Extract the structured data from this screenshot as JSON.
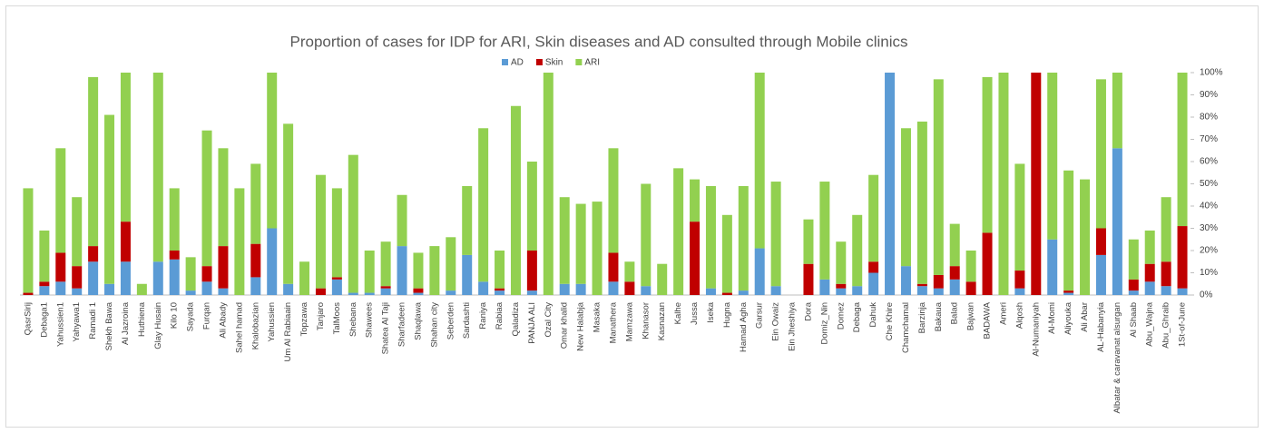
{
  "chart_data": {
    "type": "stacked_bar",
    "title": "Proportion of cases for IDP for ARI, Skin diseases and AD consulted through Mobile clinics",
    "categories": [
      "QasrSirij",
      "Debaga1",
      "Yahussien1",
      "Yahyawa1",
      "Ramadi 1",
      "Shekh Bawa",
      "Al Jazroina",
      "Huthiena",
      "Glay Husain",
      "Kilo 10",
      "Sayada",
      "Furqan",
      "Ali Abady",
      "Sahel hamad",
      "Khalobazian",
      "Yahussien",
      "Um Al Rabiaain",
      "Topzawa",
      "Tanjaro",
      "TalMoos",
      "Shebana",
      "Shawees",
      "Shatea Al Taji",
      "Sharfadeen",
      "Shaqlawa",
      "Shahan city",
      "Seberden",
      "Sardashti",
      "Raniya",
      "Rabiaa",
      "Qaladiza",
      "PANJA ALI",
      "Ozal City",
      "Omar khalid",
      "New Halabja",
      "Masaka",
      "Manathera",
      "Mamzawa",
      "Khanasor",
      "Kasnazan",
      "Kalhe",
      "Jussa",
      "Iseka",
      "Hugna",
      "Hamad Agha",
      "Garsur",
      "Ein Owaiz",
      "Ein Jheshiya",
      "Dora",
      "Domiz_Nin",
      "Domez",
      "Debaga",
      "Dahuk",
      "Che Khire",
      "Chamchamal",
      "Barzinja",
      "Bakaua",
      "Balad",
      "Bajwan",
      "BADAWA",
      "Ameri",
      "Alqosh",
      "Al-Numaniyah",
      "Al-Momi",
      "Aliyouka",
      "Ali Abar",
      "AL-Habanyia",
      "Albatar & caravanat alsurgan",
      "Al Shaab",
      "Abu_Wajna",
      "Abu_Ghraib",
      "1St-of-June"
    ],
    "series": [
      {
        "name": "AD",
        "color": "#5b9bd5",
        "values": [
          0,
          4,
          6,
          3,
          15,
          5,
          15,
          0,
          15,
          16,
          2,
          6,
          3,
          0,
          8,
          30,
          5,
          0,
          0,
          7,
          1,
          1,
          3,
          22,
          1,
          0,
          2,
          18,
          6,
          2,
          0,
          2,
          0,
          5,
          5,
          0,
          6,
          0,
          4,
          0,
          0,
          0,
          3,
          0,
          2,
          21,
          4,
          0,
          0,
          7,
          3,
          4,
          10,
          100,
          13,
          4,
          3,
          7,
          0,
          0,
          0,
          3,
          0,
          25,
          1,
          0,
          18,
          66,
          2,
          6,
          4,
          3
        ]
      },
      {
        "name": "Skin",
        "color": "#c00000",
        "values": [
          1,
          2,
          13,
          10,
          7,
          0,
          18,
          0,
          0,
          4,
          0,
          7,
          19,
          0,
          15,
          0,
          0,
          0,
          3,
          1,
          0,
          0,
          1,
          0,
          2,
          0,
          0,
          0,
          0,
          1,
          0,
          18,
          0,
          0,
          0,
          0,
          13,
          6,
          0,
          0,
          0,
          33,
          0,
          1,
          0,
          0,
          0,
          0,
          14,
          0,
          2,
          0,
          5,
          0,
          0,
          1,
          6,
          6,
          6,
          28,
          0,
          8,
          100,
          0,
          1,
          0,
          12,
          0,
          5,
          8,
          11,
          28
        ]
      },
      {
        "name": "ARI",
        "color": "#92d050",
        "values": [
          47,
          23,
          47,
          31,
          76,
          76,
          67,
          5,
          85,
          28,
          15,
          61,
          44,
          48,
          36,
          70,
          72,
          15,
          51,
          40,
          62,
          19,
          20,
          23,
          16,
          22,
          24,
          31,
          69,
          17,
          85,
          40,
          100,
          39,
          36,
          42,
          47,
          9,
          46,
          14,
          57,
          19,
          46,
          35,
          47,
          79,
          47,
          0,
          20,
          44,
          19,
          32,
          39,
          0,
          62,
          73,
          88,
          19,
          14,
          70,
          100,
          48,
          0,
          75,
          54,
          52,
          67,
          34,
          18,
          15,
          29,
          69
        ]
      }
    ],
    "ylim": [
      0,
      100
    ],
    "yticks": [
      {
        "value": 0,
        "label": "0%"
      },
      {
        "value": 10,
        "label": "10%"
      },
      {
        "value": 20,
        "label": "20%"
      },
      {
        "value": 30,
        "label": "30%"
      },
      {
        "value": 40,
        "label": "40%"
      },
      {
        "value": 50,
        "label": "50%"
      },
      {
        "value": 60,
        "label": "60%"
      },
      {
        "value": 70,
        "label": "70%"
      },
      {
        "value": 80,
        "label": "80%"
      },
      {
        "value": 90,
        "label": "90%"
      },
      {
        "value": 100,
        "label": "100%"
      }
    ],
    "legend": "top"
  }
}
